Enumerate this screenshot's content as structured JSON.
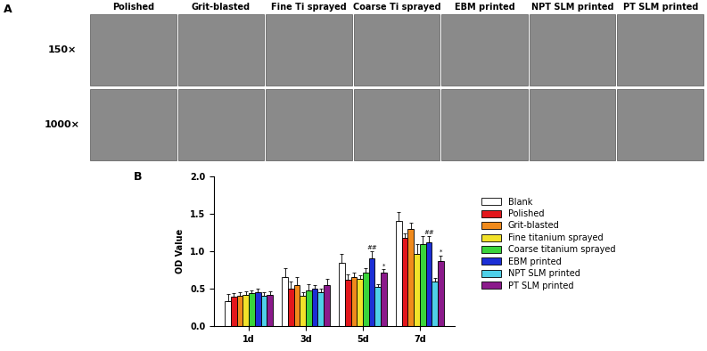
{
  "panel_a": {
    "label": "A",
    "columns": [
      "Polished",
      "Grit-blasted",
      "Fine Ti sprayed",
      "Coarse Ti sprayed",
      "EBM printed",
      "NPT SLM printed",
      "PT SLM printed"
    ],
    "rows": [
      "150×",
      "1000×"
    ]
  },
  "panel_b_label": "B",
  "chart_data": {
    "type": "bar",
    "y_label": "OD Value",
    "categories": [
      "1d",
      "3d",
      "5d",
      "7d"
    ],
    "ylim": [
      0,
      2.0
    ],
    "yticks": [
      {
        "value": 0,
        "label": "0.0"
      },
      {
        "value": 0.5,
        "label": "0.5"
      },
      {
        "value": 1.0,
        "label": "1.0"
      },
      {
        "value": 1.5,
        "label": "1.5"
      },
      {
        "value": 2.0,
        "label": "2.0"
      }
    ],
    "legend": "center left",
    "series": [
      {
        "name": "Blank",
        "color": "#ffffff",
        "values": [
          0.33,
          0.65,
          0.85,
          1.4
        ],
        "errors": [
          0.1,
          0.12,
          0.12,
          0.12
        ],
        "annotations": [
          null,
          null,
          null,
          null
        ]
      },
      {
        "name": "Polished",
        "color": "#e3171c",
        "values": [
          0.39,
          0.5,
          0.62,
          1.18
        ],
        "errors": [
          0.05,
          0.1,
          0.07,
          0.06
        ],
        "annotations": [
          null,
          null,
          null,
          null
        ]
      },
      {
        "name": "Grit-blasted",
        "color": "#f08a1c",
        "values": [
          0.4,
          0.55,
          0.66,
          1.3
        ],
        "errors": [
          0.05,
          0.1,
          0.05,
          0.08
        ],
        "annotations": [
          null,
          null,
          null,
          null
        ]
      },
      {
        "name": "Fine titanium sprayed",
        "color": "#f2e22a",
        "values": [
          0.42,
          0.4,
          0.63,
          0.97
        ],
        "errors": [
          0.05,
          0.05,
          0.05,
          0.12
        ],
        "annotations": [
          null,
          null,
          null,
          null
        ]
      },
      {
        "name": "Coarse titanium sprayed",
        "color": "#3ad43a",
        "values": [
          0.44,
          0.48,
          0.72,
          1.1
        ],
        "errors": [
          0.04,
          0.08,
          0.05,
          0.1
        ],
        "annotations": [
          null,
          null,
          null,
          null
        ]
      },
      {
        "name": "EBM printed",
        "color": "#1c2fd6",
        "values": [
          0.45,
          0.5,
          0.9,
          1.12
        ],
        "errors": [
          0.05,
          0.05,
          0.1,
          0.08
        ],
        "annotations": [
          null,
          null,
          "##",
          "##"
        ]
      },
      {
        "name": "NPT SLM printed",
        "color": "#4fd0e8",
        "values": [
          0.4,
          0.45,
          0.52,
          0.6
        ],
        "errors": [
          0.05,
          0.05,
          0.04,
          0.04
        ],
        "annotations": [
          null,
          null,
          null,
          null
        ]
      },
      {
        "name": "PT SLM printed",
        "color": "#8b1a8b",
        "values": [
          0.42,
          0.55,
          0.72,
          0.87
        ],
        "errors": [
          0.04,
          0.08,
          0.04,
          0.07
        ],
        "annotations": [
          null,
          null,
          "*",
          "*"
        ]
      }
    ]
  }
}
